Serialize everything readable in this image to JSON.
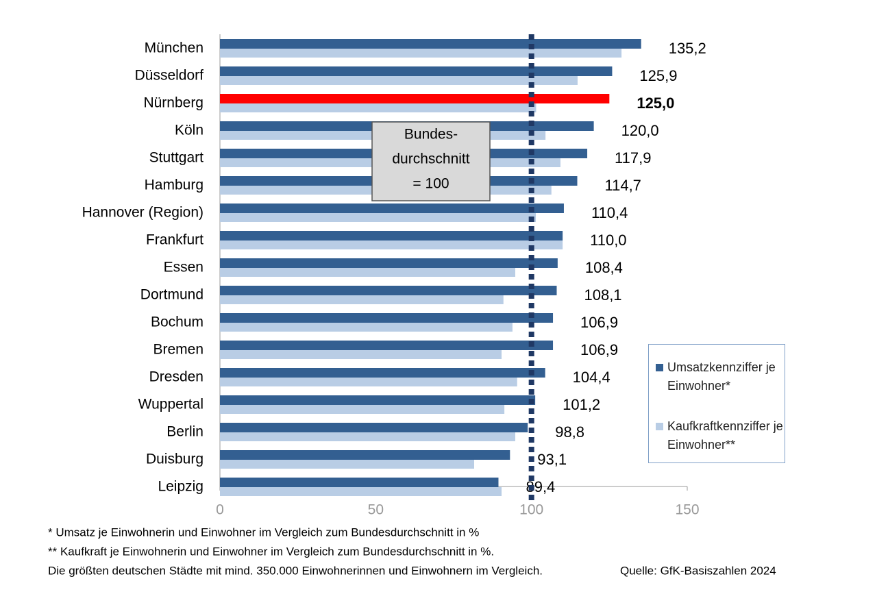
{
  "chart_data": {
    "type": "hbar",
    "categories": [
      "München",
      "Düsseldorf",
      "Nürnberg",
      "Köln",
      "Stuttgart",
      "Hamburg",
      "Hannover (Region)",
      "Frankfurt",
      "Essen",
      "Dortmund",
      "Bochum",
      "Bremen",
      "Dresden",
      "Wuppertal",
      "Berlin",
      "Duisburg",
      "Leipzig"
    ],
    "series": [
      {
        "name": "Umsatzkennziffer je Einwohner*",
        "color": "#335f91",
        "values": [
          135.2,
          125.9,
          125.0,
          120.0,
          117.9,
          114.7,
          110.4,
          110.0,
          108.4,
          108.1,
          106.9,
          106.9,
          104.4,
          101.2,
          98.8,
          93.1,
          89.4
        ],
        "value_labels": [
          "135,2",
          "125,9",
          "125,0",
          "120,0",
          "117,9",
          "114,7",
          "110,4",
          "110,0",
          "108,4",
          "108,1",
          "106,9",
          "106,9",
          "104,4",
          "101,2",
          "98,8",
          "93,1",
          "89,4"
        ],
        "colors": [
          "#335f91",
          "#335f91",
          "#ff0000",
          "#335f91",
          "#335f91",
          "#335f91",
          "#335f91",
          "#335f91",
          "#335f91",
          "#335f91",
          "#335f91",
          "#335f91",
          "#335f91",
          "#335f91",
          "#335f91",
          "#335f91",
          "#335f91"
        ]
      },
      {
        "name": "Kaufkraftkennziffer je Einwohner**",
        "color": "#b9cde5",
        "values": [
          128.9,
          114.8,
          101.5,
          104.5,
          109.3,
          106.4,
          101.4,
          110.0,
          94.8,
          91.0,
          93.9,
          90.4,
          95.4,
          91.3,
          94.8,
          81.6,
          90.4
        ]
      }
    ],
    "xlim": [
      0,
      150
    ],
    "xticks": [
      0,
      50,
      100,
      150
    ],
    "reference_line": 100,
    "annotation": [
      "Bundes-",
      "durchschnitt",
      "= 100"
    ],
    "notes": [
      "* Umsatz je Einwohnerin und Einwohner im Vergleich zum Bundesdurchschnitt in %",
      "** Kaufkraft je Einwohnerin und Einwohner im Vergleich zum Bundesdurchschnitt in %.",
      "Die größten deutschen Städte mit mind. 350.000 Einwohnerinnen und Einwohnern im Vergleich."
    ],
    "source": "Quelle: GfK-Basiszahlen 2024"
  }
}
